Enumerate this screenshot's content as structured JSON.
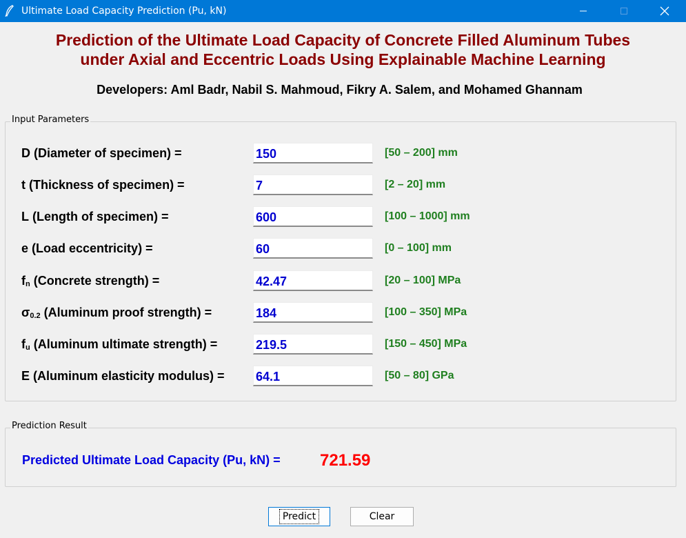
{
  "window": {
    "title": "Ultimate Load Capacity Prediction (Pu, kN)",
    "controls": {
      "minimize": "—",
      "maximize": "☐",
      "close": "✕"
    }
  },
  "header": {
    "title_line1": "Prediction of the Ultimate Load Capacity of Concrete Filled Aluminum Tubes",
    "title_line2": "under Axial and Eccentric Loads Using Explainable Machine Learning",
    "developers": "Developers: Aml Badr, Nabil S. Mahmoud, Fikry A. Salem, and Mohamed Ghannam"
  },
  "input_section": {
    "legend": "Input Parameters",
    "params": [
      {
        "symbol": "D",
        "sub": "",
        "desc": " (Diameter of specimen) =",
        "value": "150",
        "range": "[50 – 200] mm"
      },
      {
        "symbol": "t",
        "sub": "",
        "desc": " (Thickness of specimen) =",
        "value": "7",
        "range": "[2 – 20] mm"
      },
      {
        "symbol": "L",
        "sub": "",
        "desc": " (Length of specimen) =",
        "value": "600",
        "range": "[100 – 1000] mm"
      },
      {
        "symbol": "e",
        "sub": "",
        "desc": " (Load eccentricity) =",
        "value": "60",
        "range": "[0 – 100] mm"
      },
      {
        "symbol": "f",
        "sub": "n",
        "desc": " (Concrete strength) =",
        "value": "42.47",
        "range": "[20 – 100] MPa"
      },
      {
        "symbol": "σ",
        "sub": "0.2",
        "desc": " (Aluminum proof strength) =",
        "value": "184",
        "range": "[100 – 350] MPa"
      },
      {
        "symbol": "f",
        "sub": "u",
        "desc": " (Aluminum ultimate strength) =",
        "value": "219.5",
        "range": "[150 – 450] MPa"
      },
      {
        "symbol": "E",
        "sub": "",
        "desc": " (Aluminum elasticity modulus) =",
        "value": "64.1",
        "range": "[50 – 80] GPa"
      }
    ]
  },
  "result_section": {
    "legend": "Prediction Result",
    "label": "Predicted Ultimate Load Capacity (Pu, kN) =",
    "value": "721.59"
  },
  "buttons": {
    "predict": "Predict",
    "clear": "Clear"
  },
  "colors": {
    "title_bar": "#0078d7",
    "heading": "#8b0000",
    "input_value": "#0000d0",
    "range_text": "#1f7f1f",
    "result_label": "#0000e0",
    "result_value": "#ff0000"
  },
  "icons": {
    "app": "feather-pen-icon"
  }
}
